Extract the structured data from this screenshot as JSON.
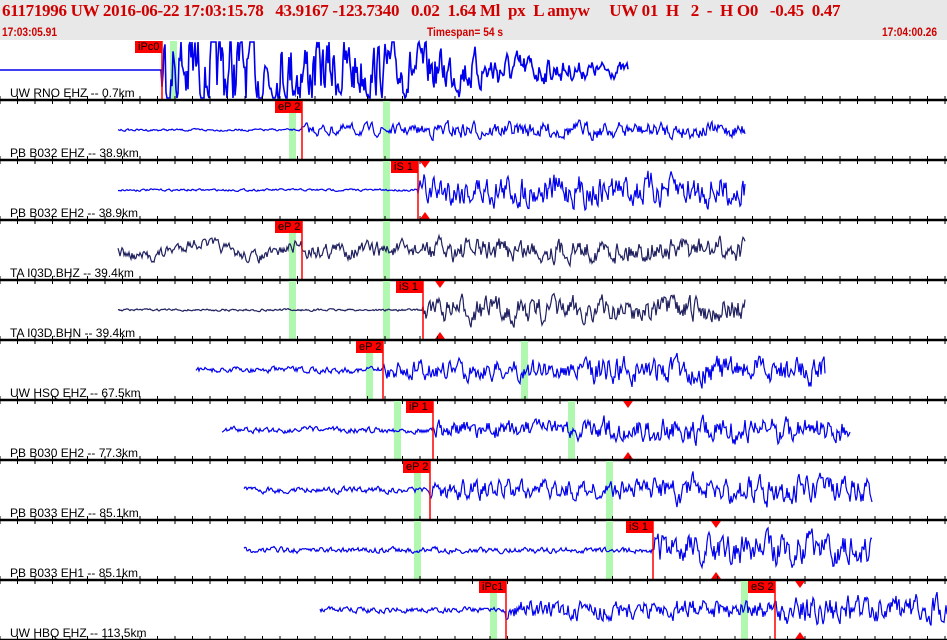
{
  "header": {
    "title": "61171996 UW 2016-06-22 17:03:15.78   43.9167 -123.7340   0.02  1.64 Ml  px  L amyw     UW 01  H   2  -  H O0   -0.45  0.47",
    "start_time": "17:03:05.91",
    "timespan": "Timespan=  54 s",
    "end_time": "17:04:00.26"
  },
  "colors": {
    "trace": "#0000ee",
    "trace_broadband": "#202060",
    "pick": "#ff0000",
    "window": "#b0f8b0",
    "header_text": "#d00000"
  },
  "panels": [
    {
      "label": "UW RNO EHZ -- 0.7km",
      "picks": [
        "iPc0"
      ]
    },
    {
      "label": "PB B032 EHZ -- 38.9km",
      "picks": [
        "eP 2"
      ]
    },
    {
      "label": "PB B032 EH2 -- 38.9km",
      "picks": [
        "iS 1"
      ]
    },
    {
      "label": "TA I03D.BHZ -- 39.4km",
      "picks": [
        "eP 2"
      ]
    },
    {
      "label": "TA I03D.BHN -- 39.4km",
      "picks": [
        "iS 1"
      ]
    },
    {
      "label": "UW HSQ EHZ -- 67.5km",
      "picks": [
        "eP 2"
      ]
    },
    {
      "label": "PB B030 EH2 -- 77.3km",
      "picks": [
        "iP 1"
      ]
    },
    {
      "label": "PB B033 EHZ -- 85.1km",
      "picks": [
        "eP 2"
      ]
    },
    {
      "label": "PB B033 EH1 -- 85.1km",
      "picks": [
        "iS 1"
      ]
    },
    {
      "label": "UW HBQ EHZ -- 113.5km",
      "picks": [
        "iPc1",
        "eS 2"
      ]
    }
  ]
}
